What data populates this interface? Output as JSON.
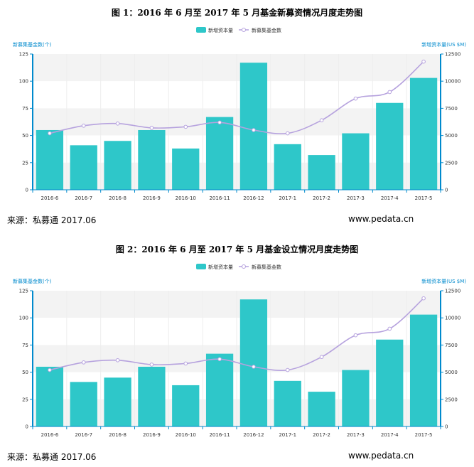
{
  "charts": [
    {
      "title": "图 1：2016 年 6 月至 2017 年 5 月基金新募资情况月度走势图",
      "source": "来源：私募通  2017.06",
      "url": "www.pedata.cn"
    },
    {
      "title": "图 2：2016 年 6 月至 2017 年 5 月基金设立情况月度走势图",
      "source": "来源：私募通  2017.06",
      "url": "www.pedata.cn"
    }
  ],
  "chart_data": [
    {
      "type": "bar",
      "title": "图 1：2016 年 6 月至 2017 年 5 月基金新募资情况月度走势图",
      "categories": [
        "2016-6",
        "2016-7",
        "2016-8",
        "2016-9",
        "2016-10",
        "2016-11",
        "2016-12",
        "2017-1",
        "2017-2",
        "2017-3",
        "2017-4",
        "2017-5"
      ],
      "series": [
        {
          "name": "新增资本量",
          "axis": "left",
          "type": "bar",
          "values": [
            55,
            41,
            45,
            55,
            38,
            67,
            117,
            42,
            32,
            52,
            80,
            103
          ]
        },
        {
          "name": "新募集基金数",
          "axis": "right",
          "type": "line",
          "values": [
            5200,
            5900,
            6100,
            5700,
            5800,
            6200,
            5500,
            5200,
            6400,
            8400,
            9000,
            11800
          ]
        }
      ],
      "ylabel_left": "新募集基金数(个)",
      "ylabel_right": "新增资本量(US $M)",
      "ylim_left": [
        0,
        125
      ],
      "ylim_right": [
        0,
        12500
      ],
      "yticks_left": [
        "0",
        "25",
        "50",
        "75",
        "100",
        "125"
      ],
      "yticks_right": [
        "0",
        "2500",
        "5000",
        "7500",
        "10000",
        "12500"
      ],
      "legend": [
        "新增资本量",
        "新募集基金数"
      ],
      "colors": {
        "bar": "#2ec7c9",
        "line": "#b6a2de",
        "axis": "#008acd",
        "band": "#f3f3f3"
      }
    },
    {
      "type": "bar",
      "title": "图 2：2016 年 6 月至 2017 年 5 月基金设立情况月度走势图",
      "categories": [
        "2016-6",
        "2016-7",
        "2016-8",
        "2016-9",
        "2016-10",
        "2016-11",
        "2016-12",
        "2017-1",
        "2017-2",
        "2017-3",
        "2017-4",
        "2017-5"
      ],
      "series": [
        {
          "name": "新增资本量",
          "axis": "left",
          "type": "bar",
          "values": [
            55,
            41,
            45,
            55,
            38,
            67,
            117,
            42,
            32,
            52,
            80,
            103
          ]
        },
        {
          "name": "新募集基金数",
          "axis": "right",
          "type": "line",
          "values": [
            5200,
            5900,
            6100,
            5700,
            5800,
            6200,
            5500,
            5200,
            6400,
            8400,
            9000,
            11800
          ]
        }
      ],
      "ylabel_left": "新募集基金数(个)",
      "ylabel_right": "新增资本量(US $M)",
      "ylim_left": [
        0,
        125
      ],
      "ylim_right": [
        0,
        12500
      ],
      "yticks_left": [
        "0",
        "25",
        "50",
        "75",
        "100",
        "125"
      ],
      "yticks_right": [
        "0",
        "2500",
        "5000",
        "7500",
        "10000",
        "12500"
      ],
      "legend": [
        "新增资本量",
        "新募集基金数"
      ],
      "colors": {
        "bar": "#2ec7c9",
        "line": "#b6a2de",
        "axis": "#008acd",
        "band": "#f3f3f3"
      }
    }
  ]
}
